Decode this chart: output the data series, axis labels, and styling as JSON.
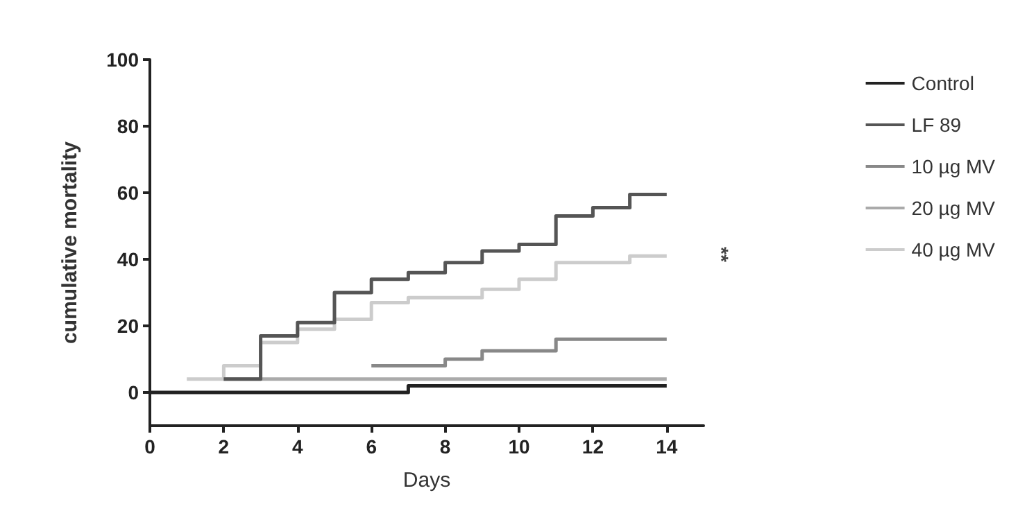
{
  "chart_data": {
    "type": "step",
    "xlabel": "Days",
    "ylabel": "cumulative mortality",
    "xlim": [
      0,
      15
    ],
    "ylim": [
      -10,
      100
    ],
    "xticks": [
      0,
      2,
      4,
      6,
      8,
      10,
      12,
      14
    ],
    "yticks": [
      0,
      20,
      40,
      60,
      80,
      100
    ],
    "legend": "right",
    "grid": false,
    "annotations": [
      "**"
    ],
    "series": [
      {
        "name": "Control",
        "color": "#222222",
        "x": [
          0,
          7,
          14
        ],
        "values": [
          0,
          2,
          2
        ]
      },
      {
        "name": "LF 89",
        "color": "#555555",
        "x": [
          2,
          3,
          4,
          5,
          6,
          7,
          8,
          9,
          10,
          11,
          12,
          13,
          14
        ],
        "values": [
          4,
          17,
          21,
          30,
          34,
          36,
          39,
          42.5,
          44.5,
          53,
          55.5,
          59.5,
          59.5
        ]
      },
      {
        "name": "10 µg MV",
        "color": "#888888",
        "x": [
          6,
          8,
          9,
          11,
          14
        ],
        "values": [
          8,
          10,
          12.5,
          16,
          16
        ]
      },
      {
        "name": "20 µg MV",
        "color": "#aaaaaa",
        "x": [
          2,
          14
        ],
        "values": [
          4,
          4
        ]
      },
      {
        "name": "40 µg MV",
        "color": "#cccccc",
        "x": [
          1,
          2,
          3,
          4,
          5,
          6,
          7,
          9,
          10,
          11,
          13,
          14
        ],
        "values": [
          4,
          8,
          15,
          19,
          22,
          27,
          28.5,
          31,
          34,
          39,
          41,
          41
        ]
      }
    ]
  }
}
